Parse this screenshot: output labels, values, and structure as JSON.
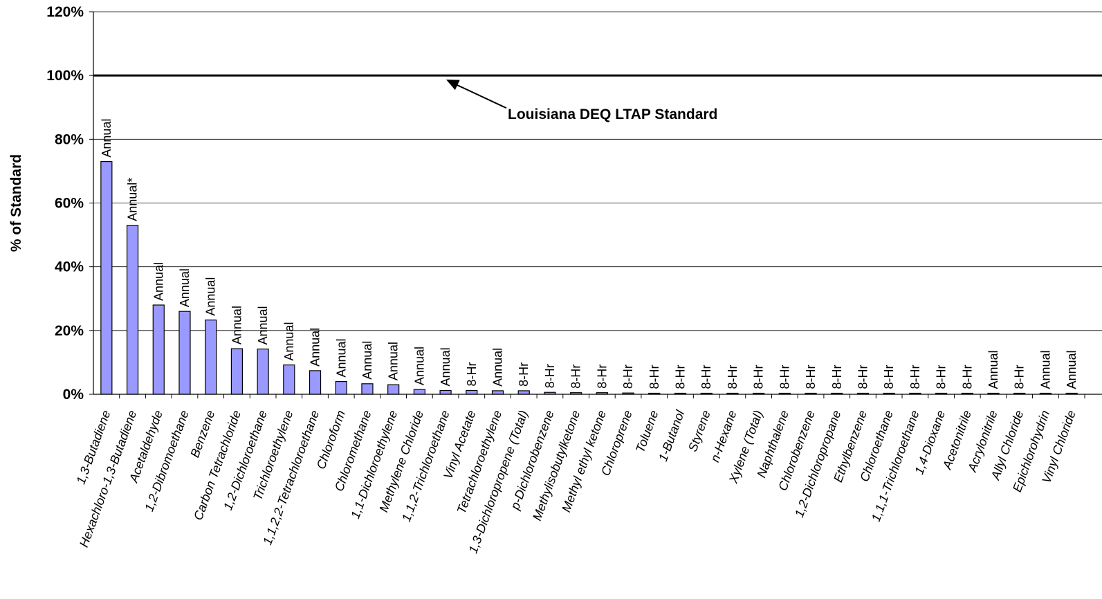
{
  "chart_data": {
    "type": "bar",
    "ylabel": "% of Standard",
    "ylim": [
      0,
      120
    ],
    "yticks": [
      "0%",
      "20%",
      "40%",
      "60%",
      "80%",
      "100%",
      "120%"
    ],
    "grid": true,
    "bar_color": "#9999ff",
    "reference_line": {
      "value": 100,
      "label": "Louisiana DEQ LTAP Standard"
    },
    "categories": [
      "1,3-Butadiene",
      "Hexachloro-1,3-Butadiene",
      "Acetaldehyde",
      "1,2-Dibromoethane",
      "Benzene",
      "Carbon Tetrachloride",
      "1,2-Dichloroethane",
      "Trichloroethylene",
      "1,1,2,2-Tetrachloroethane",
      "Chloroform",
      "Chloromethane",
      "1,1-Dichloroethylene",
      "Methylene Chloride",
      "1,1,2-Trichloroethane",
      "Vinyl Acetate",
      "Tetrachloroethylene",
      "1,3-Dichloropropene (Total)",
      "p-Dichlorobenzene",
      "Methylisobutylketone",
      "Methyl ethyl ketone",
      "Chloroprene",
      "Toluene",
      "1-Butanol",
      "Styrene",
      "n-Hexane",
      "Xylene (Total)",
      "Naphthalene",
      "Chlorobenzene",
      "1,2-Dichloropropane",
      "Ethylbenzene",
      "Chloroethane",
      "1,1,1-Trichloroethane",
      "1,4-Dioxane",
      "Acetonitrile",
      "Acrylonitrile",
      "Allyl Chloride",
      "Epichlorohydrin",
      "Vinyl Chloride"
    ],
    "values": [
      73,
      53,
      28,
      26,
      23.3,
      14.3,
      14.2,
      9.2,
      7.4,
      4,
      3.3,
      3,
      1.5,
      1.2,
      1.2,
      1.1,
      1.1,
      0.6,
      0.5,
      0.5,
      0.4,
      0.3,
      0.3,
      0.3,
      0.3,
      0.3,
      0.3,
      0.2,
      0.2,
      0.2,
      0.2,
      0.2,
      0.2,
      0.1,
      0.1,
      0.1,
      0.1,
      0.1
    ],
    "data_labels": [
      "Annual",
      "Annual*",
      "Annual",
      "Annual",
      "Annual",
      "Annual",
      "Annual",
      "Annual",
      "Annual",
      "Annual",
      "Annual",
      "Annual",
      "Annual",
      "Annual",
      "8-Hr",
      "Annual",
      "8-Hr",
      "8-Hr",
      "8-Hr",
      "8-Hr",
      "8-Hr",
      "8-Hr",
      "8-Hr",
      "8-Hr",
      "8-Hr",
      "8-Hr",
      "8-Hr",
      "8-Hr",
      "8-Hr",
      "8-Hr",
      "8-Hr",
      "8-Hr",
      "8-Hr",
      "8-Hr",
      "Annual",
      "8-Hr",
      "Annual",
      "Annual"
    ]
  }
}
